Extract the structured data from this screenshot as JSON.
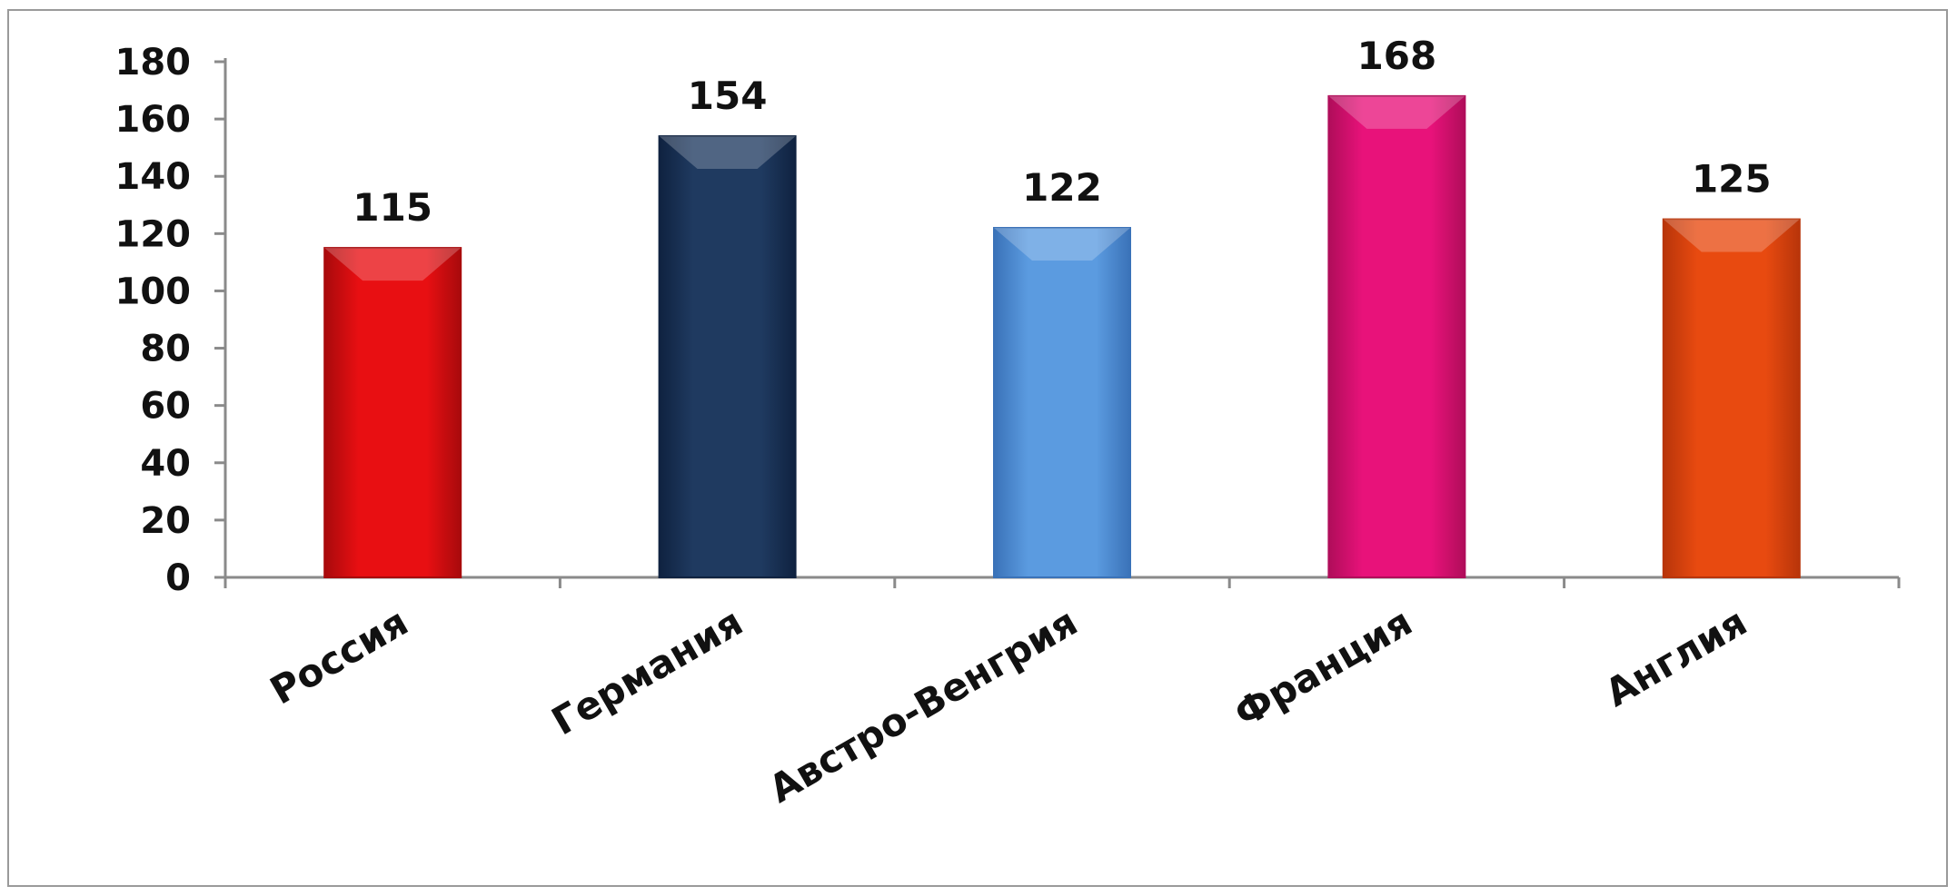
{
  "chart_data": {
    "type": "bar",
    "categories": [
      "Россия",
      "Германия",
      "Австро-Венгрия",
      "Франция",
      "Англия"
    ],
    "values": [
      115,
      154,
      122,
      168,
      125
    ],
    "data_labels": [
      "115",
      "154",
      "122",
      "168",
      "125"
    ],
    "bar_colors": [
      "#e80f12",
      "#1f3a60",
      "#5b9be0",
      "#e8127a",
      "#e84a10"
    ],
    "bar_shades": [
      "#a80a0c",
      "#0f2240",
      "#3a72b8",
      "#b00d5a",
      "#b8350a"
    ],
    "yticks": [
      "0",
      "20",
      "40",
      "60",
      "80",
      "100",
      "120",
      "140",
      "160",
      "180"
    ],
    "ylim": [
      0,
      180
    ],
    "title": "",
    "xlabel": "",
    "ylabel": "",
    "grid": false,
    "legend": "none"
  }
}
